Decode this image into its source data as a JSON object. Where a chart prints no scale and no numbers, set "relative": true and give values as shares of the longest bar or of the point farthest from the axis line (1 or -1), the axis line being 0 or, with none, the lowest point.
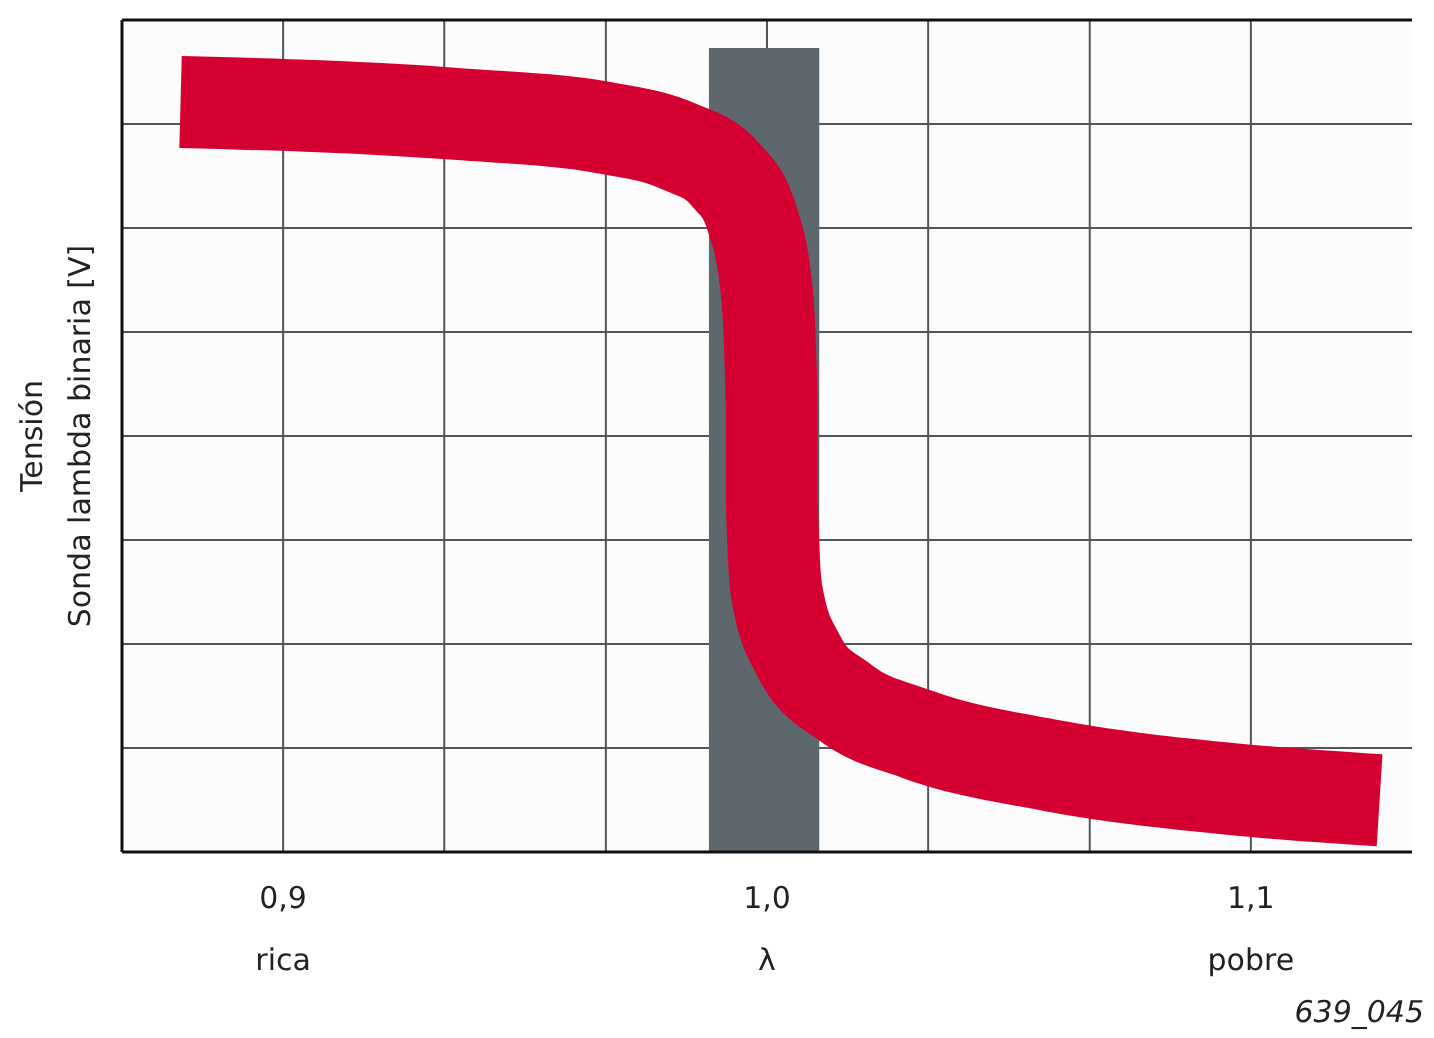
{
  "chart_data": {
    "type": "line",
    "relative": true,
    "ylabel": "Tensión\nSonda lambda binaria [V]",
    "x": [
      0.8788,
      0.936,
      0.967,
      0.9817,
      0.9913,
      0.997,
      1.0,
      1.001,
      1.001,
      1.002,
      1.0066,
      1.016,
      1.031,
      1.059,
      1.0975,
      1.1266
    ],
    "series": [
      {
        "color": "#d50032",
        "values": [
          1.0,
          0.984,
          0.965,
          0.941,
          0.904,
          0.843,
          0.744,
          0.587,
          0.469,
          0.347,
          0.261,
          0.2,
          0.157,
          0.115,
          0.083,
          0.069
        ]
      }
    ],
    "xlim": [
      0.8667,
      1.1333
    ],
    "xticks": [
      {
        "value": 0.9,
        "label": "0,9\nrica"
      },
      {
        "value": 0.9333,
        "label": null
      },
      {
        "value": 0.9667,
        "label": null
      },
      {
        "value": 1.0,
        "label": "1,0\nλ"
      },
      {
        "value": 1.0333,
        "label": null
      },
      {
        "value": 1.0667,
        "label": null
      },
      {
        "value": 1.1,
        "label": "1,1\npobre"
      }
    ],
    "tick_labels": "x",
    "grid": true,
    "marker": "none",
    "line_style": "solid",
    "bands": [
      {
        "axis": "x",
        "from": 0.988,
        "to": 1.0108,
        "color": "#5f676e"
      }
    ],
    "annotations": [
      "639_045"
    ]
  }
}
